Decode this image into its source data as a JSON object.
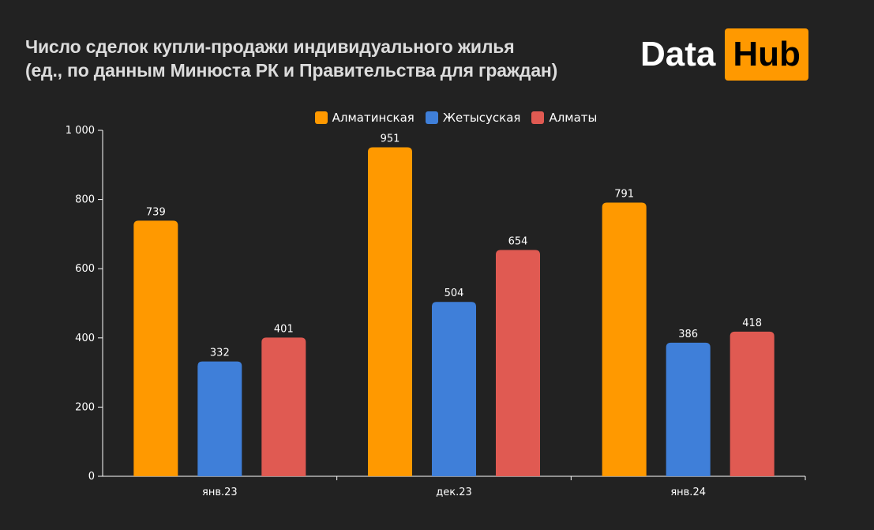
{
  "header": {
    "title_line1": "Число сделок купли-продажи индивидуального жилья",
    "title_line2": "(ед., по данным Минюста РК и Правительства для граждан)"
  },
  "logo": {
    "part1": "Data",
    "part2": "Hub",
    "accent_color": "#FF9900"
  },
  "chart_data": {
    "type": "bar",
    "categories": [
      "янв.23",
      "дек.23",
      "янв.24"
    ],
    "series": [
      {
        "name": "Алматинская",
        "color": "#FF9900",
        "values": [
          739,
          951,
          791
        ]
      },
      {
        "name": "Жетысуская",
        "color": "#3F7FD9",
        "values": [
          332,
          504,
          386
        ]
      },
      {
        "name": "Алматы",
        "color": "#E05A52",
        "values": [
          401,
          654,
          418
        ]
      }
    ],
    "ylim": [
      0,
      1000
    ],
    "yticks": [
      0,
      200,
      400,
      600,
      800,
      1000
    ],
    "ytick_labels": [
      "0",
      "200",
      "400",
      "600",
      "800",
      "1 000"
    ],
    "legend_position": "top-center",
    "grid": false,
    "data_labels": true
  }
}
